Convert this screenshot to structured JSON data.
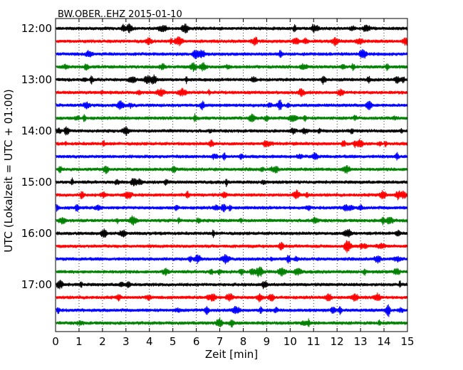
{
  "chart_data": {
    "type": "line",
    "title": "BW.OBER..EHZ 2015-01-10",
    "xlabel": "Zeit  [min]",
    "ylabel": "UTC (Lokalzeit = UTC + 01:00)",
    "xlim": [
      0,
      15
    ],
    "x_ticks": [
      "0",
      "1",
      "2",
      "3",
      "4",
      "5",
      "6",
      "7",
      "8",
      "9",
      "10",
      "11",
      "12",
      "13",
      "14",
      "15"
    ],
    "y_tick_labels": [
      "12:00",
      "13:00",
      "14:00",
      "15:00",
      "16:00",
      "17:00"
    ],
    "grid": "vertical dotted",
    "trace_colors": [
      "#000000",
      "#ff0000",
      "#0000ff",
      "#008000"
    ],
    "traces": [
      {
        "start": "12:00",
        "color": "#000000"
      },
      {
        "start": "12:15",
        "color": "#ff0000"
      },
      {
        "start": "12:30",
        "color": "#0000ff"
      },
      {
        "start": "12:45",
        "color": "#008000"
      },
      {
        "start": "13:00",
        "color": "#000000"
      },
      {
        "start": "13:15",
        "color": "#ff0000"
      },
      {
        "start": "13:30",
        "color": "#0000ff"
      },
      {
        "start": "13:45",
        "color": "#008000"
      },
      {
        "start": "14:00",
        "color": "#000000"
      },
      {
        "start": "14:15",
        "color": "#ff0000"
      },
      {
        "start": "14:30",
        "color": "#0000ff"
      },
      {
        "start": "14:45",
        "color": "#008000"
      },
      {
        "start": "15:00",
        "color": "#000000"
      },
      {
        "start": "15:15",
        "color": "#ff0000"
      },
      {
        "start": "15:30",
        "color": "#0000ff"
      },
      {
        "start": "15:45",
        "color": "#008000"
      },
      {
        "start": "16:00",
        "color": "#000000"
      },
      {
        "start": "16:15",
        "color": "#ff0000"
      },
      {
        "start": "16:30",
        "color": "#0000ff"
      },
      {
        "start": "16:45",
        "color": "#008000"
      },
      {
        "start": "17:00",
        "color": "#000000"
      },
      {
        "start": "17:15",
        "color": "#ff0000"
      },
      {
        "start": "17:30",
        "color": "#0000ff"
      },
      {
        "start": "17:45",
        "color": "#008000"
      }
    ]
  }
}
